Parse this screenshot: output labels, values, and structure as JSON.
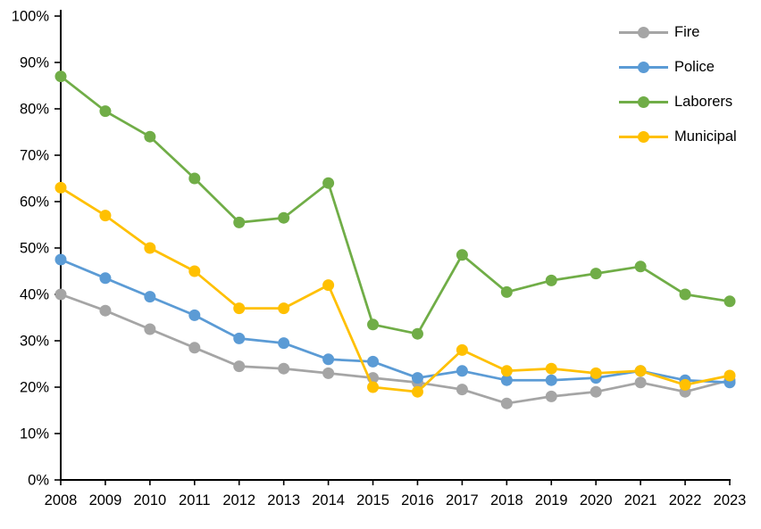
{
  "chart_data": {
    "type": "line",
    "title": "",
    "xlabel": "",
    "ylabel": "",
    "x": [
      "2008",
      "2009",
      "2010",
      "2011",
      "2012",
      "2013",
      "2014",
      "2015",
      "2016",
      "2017",
      "2018",
      "2019",
      "2020",
      "2021",
      "2022",
      "2023"
    ],
    "series": [
      {
        "name": "Fire",
        "color": "#A5A5A5",
        "values": [
          40,
          36.5,
          32.5,
          28.5,
          24.5,
          24,
          23,
          22,
          21,
          19.5,
          16.5,
          18,
          19,
          21,
          19,
          21.5
        ]
      },
      {
        "name": "Police",
        "color": "#5B9BD5",
        "values": [
          47.5,
          43.5,
          39.5,
          35.5,
          30.5,
          29.5,
          26,
          25.5,
          22,
          23.5,
          21.5,
          21.5,
          22,
          23.5,
          21.5,
          21
        ]
      },
      {
        "name": "Laborers",
        "color": "#70AD47",
        "values": [
          87,
          79.5,
          74,
          65,
          55.5,
          56.5,
          64,
          33.5,
          31.5,
          48.5,
          40.5,
          43,
          44.5,
          46,
          40,
          38.5
        ]
      },
      {
        "name": "Municipal",
        "color": "#FFC000",
        "values": [
          63,
          57,
          50,
          45,
          37,
          37,
          42,
          20,
          19,
          28,
          23.5,
          24,
          23,
          23.5,
          20.5,
          22.5
        ]
      }
    ],
    "ylim": [
      0,
      100
    ],
    "ytick_step": 10,
    "ytick_suffix": "%",
    "grid": false,
    "legend_position": "top-right",
    "axis_color": "#000000"
  }
}
